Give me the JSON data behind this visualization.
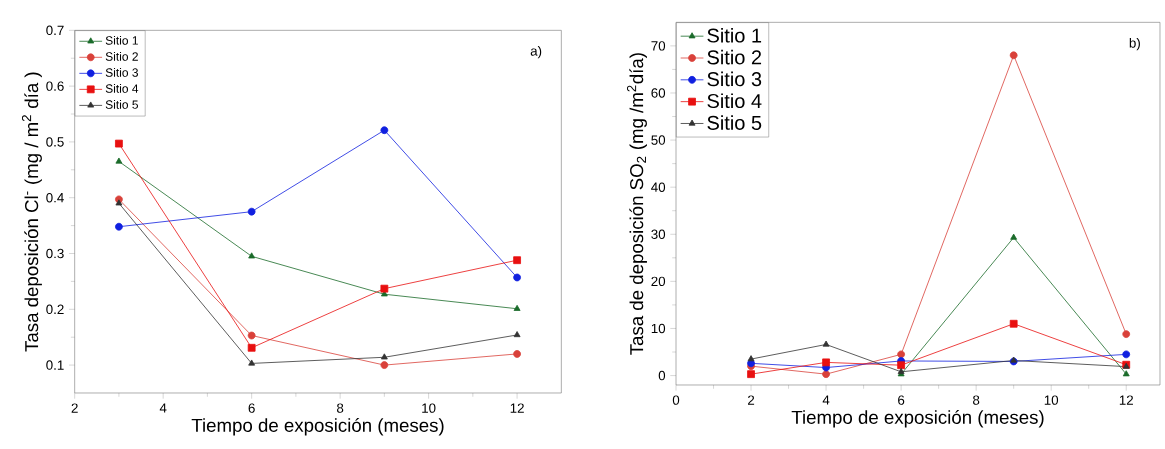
{
  "chart_data": [
    {
      "type": "line",
      "xlabel": "Tiempo de exposición (meses)",
      "ylabel": "Tasa deposición Cl$^{-}$ (mg / m$^{2}$ día )",
      "annotations": [
        "a)"
      ],
      "x": [
        3,
        6,
        9,
        12
      ],
      "xlim": [
        2,
        13
      ],
      "xticks": [
        2,
        4,
        6,
        8,
        10,
        12
      ],
      "ylim": [
        0.05,
        0.7
      ],
      "yticks": [
        0.1,
        0.2,
        0.3,
        0.4,
        0.5,
        0.6,
        0.7
      ],
      "legend": "top left",
      "grid": false,
      "series": [
        {
          "name": "Sitio 1",
          "color": "#1a6b2a",
          "marker": "triangle",
          "values": [
            0.465,
            0.295,
            0.227,
            0.201
          ]
        },
        {
          "name": "Sitio 2",
          "color": "#d9413a",
          "marker": "circle",
          "values": [
            0.397,
            0.153,
            0.1,
            0.12
          ]
        },
        {
          "name": "Sitio 3",
          "color": "#1020e0",
          "marker": "circle",
          "values": [
            0.348,
            0.375,
            0.521,
            0.257
          ]
        },
        {
          "name": "Sitio 4",
          "color": "#e81010",
          "marker": "square",
          "values": [
            0.497,
            0.131,
            0.237,
            0.288
          ]
        },
        {
          "name": "Sitio 5",
          "color": "#333333",
          "marker": "triangle",
          "values": [
            0.39,
            0.103,
            0.114,
            0.154
          ]
        }
      ]
    },
    {
      "type": "line",
      "xlabel": "Tiempo de exposición (meses)",
      "ylabel": "Tasa de deposición SO$_{2}$ (mg /m$^{2}$día)",
      "annotations": [
        "b)"
      ],
      "x": [
        2,
        4,
        6,
        9,
        12
      ],
      "xlim": [
        0,
        12.9
      ],
      "xticks": [
        0,
        2,
        4,
        6,
        8,
        10,
        12
      ],
      "ylim": [
        -2,
        75
      ],
      "yticks": [
        0,
        10,
        20,
        30,
        40,
        50,
        60,
        70
      ],
      "legend": "top left",
      "grid": false,
      "series": [
        {
          "name": "Sitio 1",
          "color": "#1a6b2a",
          "marker": "triangle",
          "values": [
            null,
            null,
            0.3,
            29.3,
            0.3
          ]
        },
        {
          "name": "Sitio 2",
          "color": "#d9413a",
          "marker": "circle",
          "values": [
            2,
            0.3,
            4.5,
            68,
            8.8
          ]
        },
        {
          "name": "Sitio 3",
          "color": "#1020e0",
          "marker": "circle",
          "values": [
            2.6,
            1.7,
            3.1,
            3,
            4.5
          ]
        },
        {
          "name": "Sitio 4",
          "color": "#e81010",
          "marker": "square",
          "values": [
            0.3,
            2.8,
            2.2,
            11,
            2.3
          ]
        },
        {
          "name": "Sitio 5",
          "color": "#333333",
          "marker": "triangle",
          "values": [
            3.5,
            6.6,
            0.8,
            3.2,
            1.9
          ]
        }
      ]
    }
  ]
}
